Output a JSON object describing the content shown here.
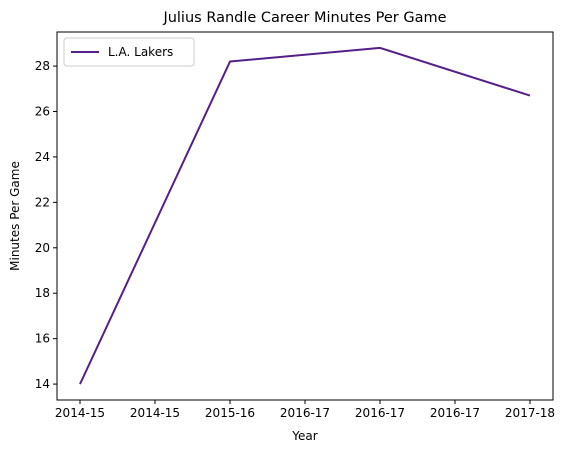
{
  "chart_data": {
    "type": "line",
    "title": "Julius Randle Career Minutes Per Game",
    "xlabel": "Year",
    "ylabel": "Minutes Per Game",
    "x_tick_labels": [
      "2014-15",
      "2014-15",
      "2015-16",
      "2016-17",
      "2016-17",
      "2016-17",
      "2017-18"
    ],
    "categories": [
      "2014-15",
      "2015-16",
      "2016-17",
      "2017-18"
    ],
    "series": [
      {
        "name": "L.A. Lakers",
        "values": [
          14.0,
          28.2,
          28.8,
          26.7
        ]
      }
    ],
    "ylim": [
      13.3,
      29.5
    ],
    "y_ticks": [
      14,
      16,
      18,
      20,
      22,
      24,
      26,
      28
    ],
    "grid": false,
    "legend": "top-left",
    "colors": {
      "series": "#55208a"
    }
  }
}
